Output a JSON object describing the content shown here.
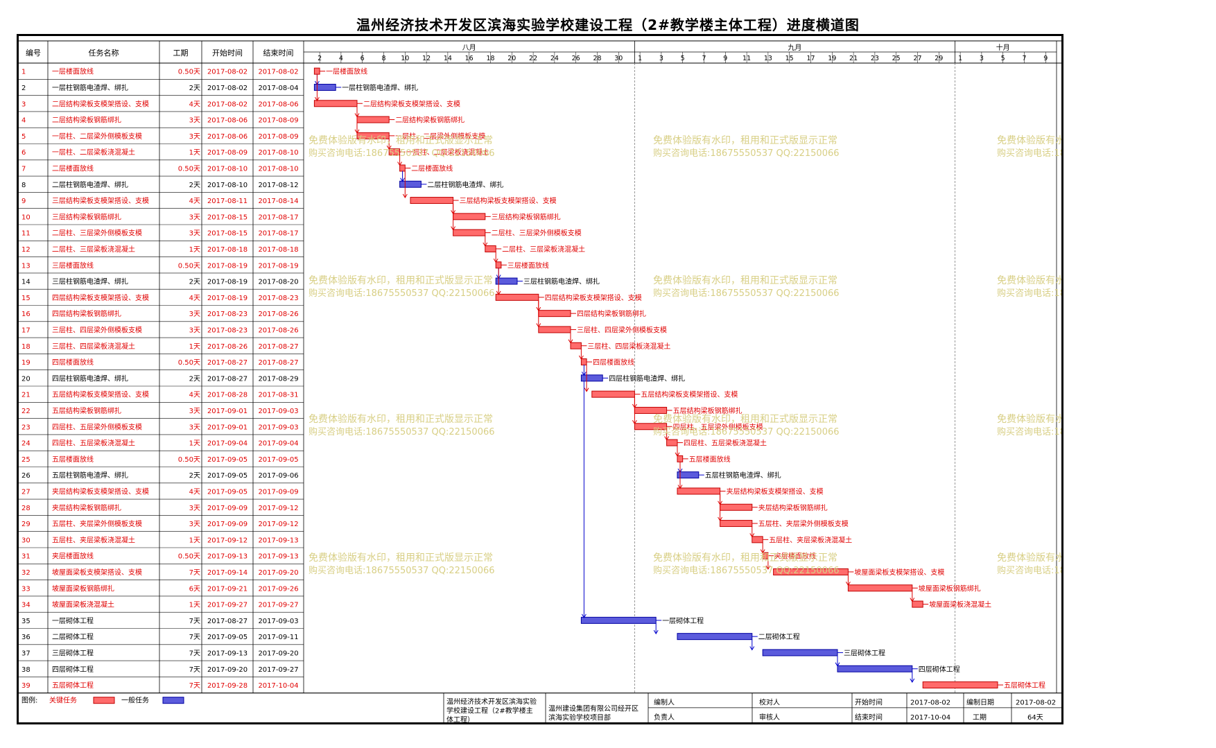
{
  "title": "温州经济技术开发区滨海实验学校建设工程（2#教学楼主体工程）进度横道图",
  "headers": {
    "id": "编号",
    "name": "任务名称",
    "duration": "工期",
    "start": "开始时间",
    "end": "结束时间"
  },
  "months": [
    {
      "label": "八月"
    },
    {
      "label": "九月"
    },
    {
      "label": "十月"
    }
  ],
  "day_ticks": [
    "2",
    "4",
    "6",
    "8",
    "10",
    "12",
    "14",
    "16",
    "18",
    "20",
    "22",
    "24",
    "26",
    "28",
    "30",
    "1",
    "3",
    "5",
    "7",
    "9",
    "11",
    "13",
    "15",
    "17",
    "19",
    "21",
    "23",
    "25",
    "27",
    "29",
    "1",
    "3",
    "5",
    "7",
    "9"
  ],
  "watermark": {
    "line1": "免费体验版有水印，租用和正式版显示正常",
    "line2": "购买咨询电话:18675550537 QQ:22150066"
  },
  "colors": {
    "critical": "#ff6b6b",
    "normal": "#5b5bdc",
    "link": "#0000cc",
    "critical_link": "#dd0000",
    "watermark": "#d8cf85",
    "critical_text": "#e00000"
  },
  "legend": {
    "label": "图例:",
    "critical": "关键任务",
    "normal": "一般任务"
  },
  "footer": {
    "project": "温州经济技术开发区滨海实验学校建设工程（2#教学楼主体工程）",
    "company": "温州建设集团有限公司经开区滨海实验学校项目部",
    "editor_label": "编制人",
    "checker_label": "校对人",
    "owner_label": "负责人",
    "reviewer_label": "审核人",
    "start_label": "开始时间",
    "start_value": "2017-08-02",
    "end_label": "结束时间",
    "end_value": "2017-10-04",
    "date_label": "编制日期",
    "date_value": "2017-08-02",
    "duration_label": "工期",
    "duration_value": "64天"
  },
  "chart_data": {
    "type": "gantt",
    "x_axis": {
      "unit": "date",
      "range": [
        "2017-08-01",
        "2017-10-10"
      ]
    },
    "tasks": [
      {
        "id": "1",
        "name": "一层楼面放线",
        "duration": "0.50天",
        "start": "2017-08-02",
        "end": "2017-08-02",
        "critical": true
      },
      {
        "id": "2",
        "name": "一层柱钢筋电渣焊、绑扎",
        "duration": "2天",
        "start": "2017-08-02",
        "end": "2017-08-04",
        "critical": false
      },
      {
        "id": "3",
        "name": "二层结构梁板支模架搭设、支模",
        "duration": "4天",
        "start": "2017-08-02",
        "end": "2017-08-06",
        "critical": true
      },
      {
        "id": "4",
        "name": "二层结构梁板钢筋绑扎",
        "duration": "3天",
        "start": "2017-08-06",
        "end": "2017-08-09",
        "critical": true
      },
      {
        "id": "5",
        "name": "一层柱、二层梁外侧模板支模",
        "duration": "3天",
        "start": "2017-08-06",
        "end": "2017-08-09",
        "critical": true
      },
      {
        "id": "6",
        "name": "一层柱、二层梁板浇混凝土",
        "duration": "1天",
        "start": "2017-08-09",
        "end": "2017-08-10",
        "critical": true
      },
      {
        "id": "7",
        "name": "二层楼面放线",
        "duration": "0.50天",
        "start": "2017-08-10",
        "end": "2017-08-10",
        "critical": true
      },
      {
        "id": "8",
        "name": "二层柱钢筋电渣焊、绑扎",
        "duration": "2天",
        "start": "2017-08-10",
        "end": "2017-08-12",
        "critical": false
      },
      {
        "id": "9",
        "name": "三层结构梁板支模架搭设、支模",
        "duration": "4天",
        "start": "2017-08-11",
        "end": "2017-08-14",
        "critical": true
      },
      {
        "id": "10",
        "name": "三层结构梁板钢筋绑扎",
        "duration": "3天",
        "start": "2017-08-15",
        "end": "2017-08-17",
        "critical": true
      },
      {
        "id": "11",
        "name": "二层柱、三层梁外侧模板支模",
        "duration": "3天",
        "start": "2017-08-15",
        "end": "2017-08-17",
        "critical": true
      },
      {
        "id": "12",
        "name": "二层柱、三层梁板浇混凝土",
        "duration": "1天",
        "start": "2017-08-18",
        "end": "2017-08-18",
        "critical": true
      },
      {
        "id": "13",
        "name": "三层楼面放线",
        "duration": "0.50天",
        "start": "2017-08-19",
        "end": "2017-08-19",
        "critical": true
      },
      {
        "id": "14",
        "name": "三层柱钢筋电渣焊、绑扎",
        "duration": "2天",
        "start": "2017-08-19",
        "end": "2017-08-20",
        "critical": false
      },
      {
        "id": "15",
        "name": "四层结构梁板支模架搭设、支模",
        "duration": "4天",
        "start": "2017-08-19",
        "end": "2017-08-23",
        "critical": true
      },
      {
        "id": "16",
        "name": "四层结构梁板钢筋绑扎",
        "duration": "3天",
        "start": "2017-08-23",
        "end": "2017-08-26",
        "critical": true
      },
      {
        "id": "17",
        "name": "三层柱、四层梁外侧模板支模",
        "duration": "3天",
        "start": "2017-08-23",
        "end": "2017-08-26",
        "critical": true
      },
      {
        "id": "18",
        "name": "三层柱、四层梁板浇混凝土",
        "duration": "1天",
        "start": "2017-08-26",
        "end": "2017-08-27",
        "critical": true
      },
      {
        "id": "19",
        "name": "四层楼面放线",
        "duration": "0.50天",
        "start": "2017-08-27",
        "end": "2017-08-27",
        "critical": true
      },
      {
        "id": "20",
        "name": "四层柱钢筋电渣焊、绑扎",
        "duration": "2天",
        "start": "2017-08-27",
        "end": "2017-08-29",
        "critical": false
      },
      {
        "id": "21",
        "name": "五层结构梁板支模架搭设、支模",
        "duration": "4天",
        "start": "2017-08-28",
        "end": "2017-08-31",
        "critical": true
      },
      {
        "id": "22",
        "name": "五层结构梁板钢筋绑扎",
        "duration": "3天",
        "start": "2017-09-01",
        "end": "2017-09-03",
        "critical": true
      },
      {
        "id": "23",
        "name": "四层柱、五层梁外侧模板支模",
        "duration": "3天",
        "start": "2017-09-01",
        "end": "2017-09-03",
        "critical": true
      },
      {
        "id": "24",
        "name": "四层柱、五层梁板浇混凝土",
        "duration": "1天",
        "start": "2017-09-04",
        "end": "2017-09-04",
        "critical": true
      },
      {
        "id": "25",
        "name": "五层楼面放线",
        "duration": "0.50天",
        "start": "2017-09-05",
        "end": "2017-09-05",
        "critical": true
      },
      {
        "id": "26",
        "name": "五层柱钢筋电渣焊、绑扎",
        "duration": "2天",
        "start": "2017-09-05",
        "end": "2017-09-06",
        "critical": false
      },
      {
        "id": "27",
        "name": "夹层结构梁板支模架搭设、支模",
        "duration": "4天",
        "start": "2017-09-05",
        "end": "2017-09-09",
        "critical": true
      },
      {
        "id": "28",
        "name": "夹层结构梁板钢筋绑扎",
        "duration": "3天",
        "start": "2017-09-09",
        "end": "2017-09-12",
        "critical": true
      },
      {
        "id": "29",
        "name": "五层柱、夹层梁外侧模板支模",
        "duration": "3天",
        "start": "2017-09-09",
        "end": "2017-09-12",
        "critical": true
      },
      {
        "id": "30",
        "name": "五层柱、夹层梁板浇混凝土",
        "duration": "1天",
        "start": "2017-09-12",
        "end": "2017-09-13",
        "critical": true
      },
      {
        "id": "31",
        "name": "夹层楼面放线",
        "duration": "0.50天",
        "start": "2017-09-13",
        "end": "2017-09-13",
        "critical": true
      },
      {
        "id": "32",
        "name": "坡屋面梁板支模架搭设、支模",
        "duration": "7天",
        "start": "2017-09-14",
        "end": "2017-09-20",
        "critical": true
      },
      {
        "id": "33",
        "name": "坡屋面梁板钢筋绑扎",
        "duration": "6天",
        "start": "2017-09-21",
        "end": "2017-09-26",
        "critical": true
      },
      {
        "id": "34",
        "name": "坡屋面梁板浇混凝土",
        "duration": "1天",
        "start": "2017-09-27",
        "end": "2017-09-27",
        "critical": true
      },
      {
        "id": "35",
        "name": "一层砌体工程",
        "duration": "7天",
        "start": "2017-08-27",
        "end": "2017-09-03",
        "critical": false
      },
      {
        "id": "36",
        "name": "二层砌体工程",
        "duration": "7天",
        "start": "2017-09-05",
        "end": "2017-09-11",
        "critical": false
      },
      {
        "id": "37",
        "name": "三层砌体工程",
        "duration": "7天",
        "start": "2017-09-13",
        "end": "2017-09-20",
        "critical": false
      },
      {
        "id": "38",
        "name": "四层砌体工程",
        "duration": "7天",
        "start": "2017-09-20",
        "end": "2017-09-27",
        "critical": false
      },
      {
        "id": "39",
        "name": "五层砌体工程",
        "duration": "7天",
        "start": "2017-09-28",
        "end": "2017-10-04",
        "critical": true
      }
    ]
  }
}
